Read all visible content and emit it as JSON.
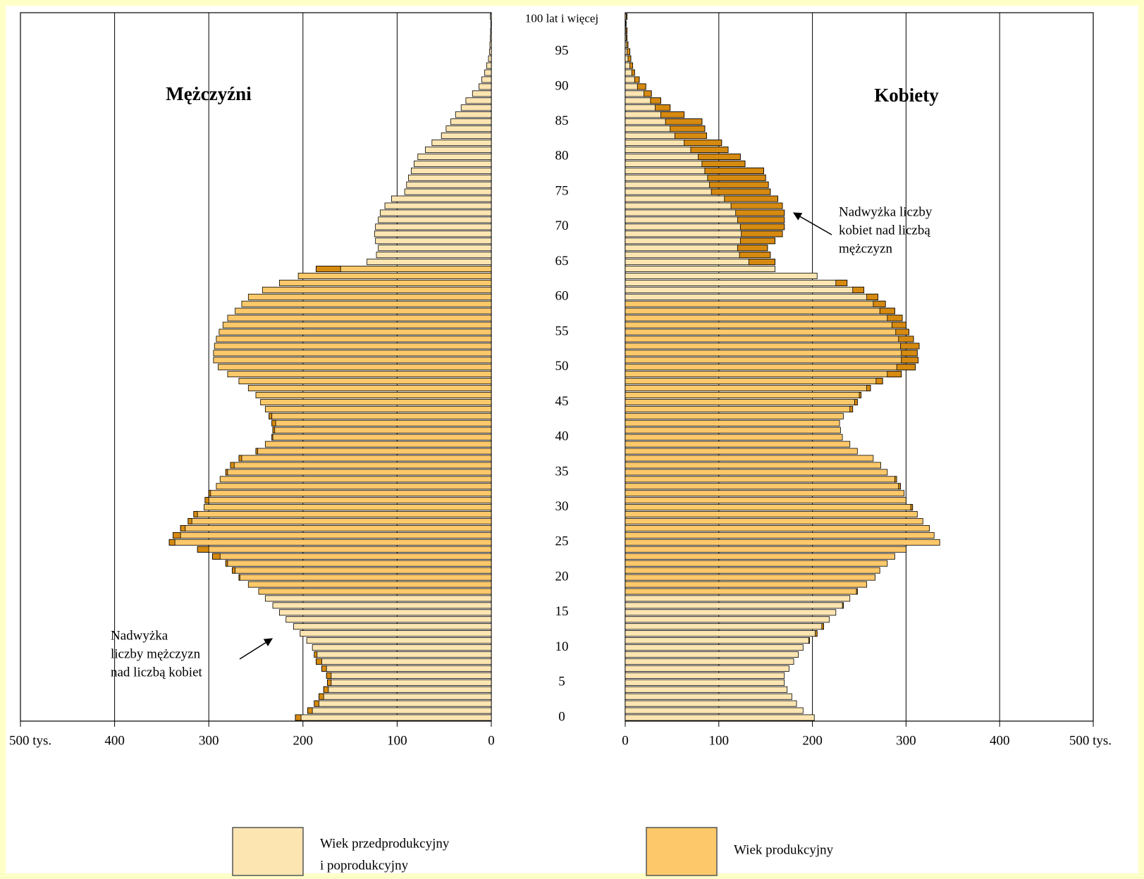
{
  "chart_data": {
    "type": "pyramid",
    "categories": [
      "0",
      null,
      null,
      null,
      null,
      "5",
      null,
      null,
      null,
      null,
      "10",
      null,
      null,
      null,
      null,
      "15",
      null,
      null,
      null,
      null,
      "20",
      null,
      null,
      null,
      null,
      "25",
      null,
      null,
      null,
      null,
      "30",
      null,
      null,
      null,
      null,
      "35",
      null,
      null,
      null,
      null,
      "40",
      null,
      null,
      null,
      null,
      "45",
      null,
      null,
      null,
      null,
      "50",
      null,
      null,
      null,
      null,
      "55",
      null,
      null,
      null,
      null,
      "60",
      null,
      null,
      null,
      null,
      "65",
      null,
      null,
      null,
      null,
      "70",
      null,
      null,
      null,
      null,
      "75",
      null,
      null,
      null,
      null,
      "80",
      null,
      null,
      null,
      null,
      "85",
      null,
      null,
      null,
      null,
      "90",
      null,
      null,
      null,
      null,
      "95",
      null,
      null,
      null,
      null,
      "100 lat i więcej"
    ],
    "series": [
      {
        "name": "Mężczyźni",
        "side": "left",
        "values": [
          208,
          195,
          188,
          183,
          178,
          174,
          175,
          180,
          186,
          188,
          190,
          196,
          203,
          210,
          218,
          225,
          232,
          240,
          247,
          258,
          268,
          275,
          282,
          296,
          312,
          342,
          338,
          330,
          322,
          316,
          305,
          304,
          300,
          292,
          288,
          282,
          277,
          268,
          250,
          240,
          233,
          232,
          233,
          236,
          240,
          245,
          250,
          258,
          268,
          280,
          290,
          295,
          295,
          294,
          292,
          289,
          285,
          280,
          272,
          265,
          258,
          243,
          225,
          205,
          186,
          132,
          122,
          120,
          123,
          124,
          123,
          120,
          118,
          113,
          106,
          92,
          90,
          88,
          85,
          82,
          78,
          70,
          63,
          53,
          48,
          43,
          38,
          32,
          27,
          20,
          13,
          10,
          7,
          5,
          3,
          2,
          1.5,
          1,
          0.8,
          0.5,
          1
        ],
        "groups": [
          0,
          0,
          0,
          0,
          0,
          0,
          0,
          0,
          0,
          0,
          0,
          0,
          0,
          0,
          0,
          0,
          0,
          0,
          1,
          1,
          1,
          1,
          1,
          1,
          1,
          1,
          1,
          1,
          1,
          1,
          1,
          1,
          1,
          1,
          1,
          1,
          1,
          1,
          1,
          1,
          1,
          1,
          1,
          1,
          1,
          1,
          1,
          1,
          1,
          1,
          1,
          1,
          1,
          1,
          1,
          1,
          1,
          1,
          1,
          1,
          1,
          1,
          1,
          1,
          1,
          0,
          0,
          0,
          0,
          0,
          0,
          0,
          0,
          0,
          0,
          0,
          0,
          0,
          0,
          0,
          0,
          0,
          0,
          0,
          0,
          0,
          0,
          0,
          0,
          0,
          0,
          0,
          0,
          0,
          0,
          0,
          0,
          0,
          0,
          0,
          0
        ]
      },
      {
        "name": "Kobiety",
        "side": "right",
        "values": [
          202,
          190,
          183,
          178,
          173,
          170,
          170,
          175,
          180,
          185,
          190,
          197,
          205,
          212,
          218,
          225,
          233,
          240,
          248,
          258,
          267,
          272,
          280,
          288,
          300,
          336,
          330,
          325,
          318,
          312,
          307,
          300,
          298,
          294,
          290,
          280,
          273,
          265,
          248,
          240,
          232,
          230,
          229,
          233,
          243,
          248,
          252,
          262,
          275,
          295,
          310,
          313,
          312,
          314,
          308,
          303,
          300,
          296,
          288,
          278,
          270,
          255,
          237,
          205,
          160,
          160,
          155,
          152,
          160,
          168,
          170,
          170,
          170,
          168,
          163,
          155,
          153,
          150,
          148,
          128,
          123,
          110,
          103,
          87,
          85,
          82,
          63,
          48,
          38,
          28,
          22,
          15,
          10,
          8,
          6,
          5,
          3,
          2,
          2,
          1,
          2
        ],
        "groups": [
          0,
          0,
          0,
          0,
          0,
          0,
          0,
          0,
          0,
          0,
          0,
          0,
          0,
          0,
          0,
          0,
          0,
          0,
          1,
          1,
          1,
          1,
          1,
          1,
          1,
          1,
          1,
          1,
          1,
          1,
          1,
          1,
          1,
          1,
          1,
          1,
          1,
          1,
          1,
          1,
          1,
          1,
          1,
          1,
          1,
          1,
          1,
          1,
          1,
          1,
          1,
          1,
          1,
          1,
          1,
          1,
          1,
          1,
          1,
          1,
          0,
          0,
          0,
          0,
          0,
          0,
          0,
          0,
          0,
          0,
          0,
          0,
          0,
          0,
          0,
          0,
          0,
          0,
          0,
          0,
          0,
          0,
          0,
          0,
          0,
          0,
          0,
          0,
          0,
          0,
          0,
          0,
          0,
          0,
          0,
          0,
          0,
          0,
          0,
          0,
          0
        ]
      }
    ],
    "legend": [
      {
        "name": [
          "Wiek przedprodukcyjny",
          "i poprodukcyjny"
        ],
        "color": "#fde5b2"
      },
      {
        "name": [
          "Wiek produkcyjny"
        ],
        "color": "#fcc86a"
      }
    ],
    "excess_color": "#d68a10",
    "xlim": [
      0,
      500
    ],
    "xticks": [
      0,
      100,
      200,
      300,
      400,
      {
        "value": 500,
        "label": "500 tys."
      }
    ],
    "grid": true,
    "annotations": [
      {
        "lines": [
          "Nadwyżka",
          "liczby mężczyzn",
          "nad liczbą kobiet"
        ]
      },
      {
        "lines": [
          "Nadwyżka liczby",
          "kobiet nad liczbą",
          "mężczyzn"
        ]
      }
    ]
  }
}
